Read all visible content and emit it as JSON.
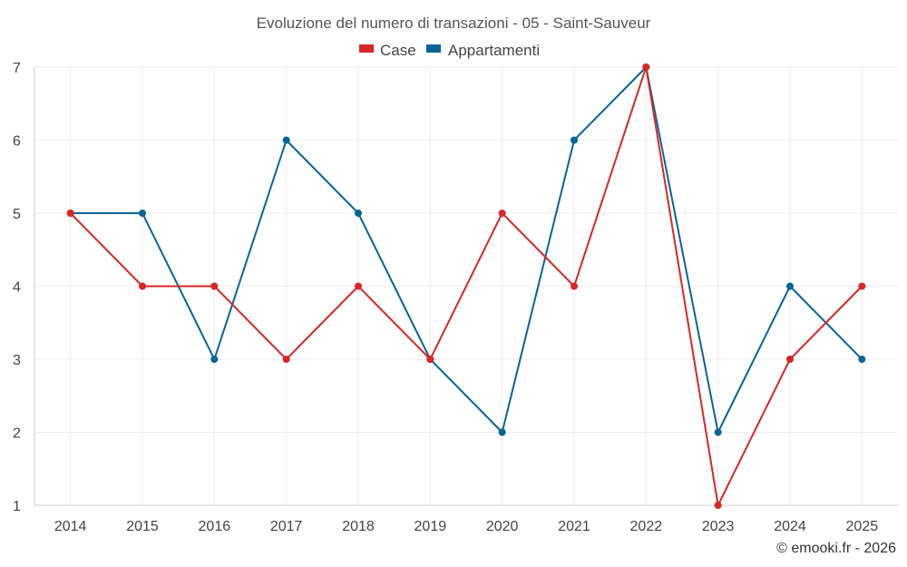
{
  "chart_data": {
    "type": "line",
    "title": "Evoluzione del numero di transazioni - 05 - Saint-Sauveur",
    "categories": [
      "2014",
      "2015",
      "2016",
      "2017",
      "2018",
      "2019",
      "2020",
      "2021",
      "2022",
      "2023",
      "2024",
      "2025"
    ],
    "series": [
      {
        "name": "Case",
        "color": "#d62728",
        "values": [
          5,
          4,
          4,
          3,
          4,
          3,
          5,
          4,
          7,
          1,
          3,
          4
        ]
      },
      {
        "name": "Appartamenti",
        "color": "#0a6496",
        "values": [
          5,
          5,
          3,
          6,
          5,
          3,
          2,
          6,
          7,
          2,
          4,
          3
        ]
      }
    ],
    "ylim": [
      1,
      7
    ],
    "yticks": [
      1,
      2,
      3,
      4,
      5,
      6,
      7
    ],
    "xlabel": "",
    "ylabel": "",
    "grid": true,
    "legend_position": "top-center"
  },
  "credit": "© emooki.fr - 2026"
}
